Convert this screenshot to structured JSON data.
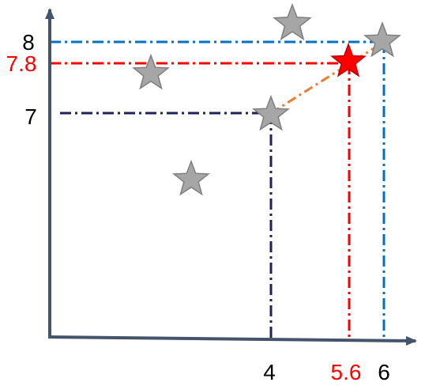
{
  "colors": {
    "axis": "#44546a",
    "guide_blue": "#0070c0",
    "guide_red": "#ff0000",
    "guide_navy": "#1f1f5c",
    "connector": "#ed7d31",
    "star_gray": "#a6a6a6",
    "star_red": "#ff0000",
    "label_black": "#000000",
    "label_red": "#ff0000"
  },
  "labels": {
    "x_4": "4",
    "x_5_6": "5.6",
    "x_6": "6",
    "y_8": "8",
    "y_7_8": "7.8",
    "y_7": "7"
  },
  "points": [
    {
      "name": "star-top-center",
      "x": 4.1,
      "y": 8.3,
      "color": "gray"
    },
    {
      "name": "star-upper-left",
      "x": 1.7,
      "y": 7.6,
      "color": "gray"
    },
    {
      "name": "star-lower-left",
      "x": 2.5,
      "y": 6.2,
      "color": "gray"
    },
    {
      "name": "star-at-4-7",
      "x": 4.0,
      "y": 7.0,
      "color": "gray"
    },
    {
      "name": "star-at-6-8",
      "x": 6.0,
      "y": 8.0,
      "color": "gray"
    },
    {
      "name": "star-interpolated",
      "x": 5.6,
      "y": 7.8,
      "color": "red"
    }
  ]
}
